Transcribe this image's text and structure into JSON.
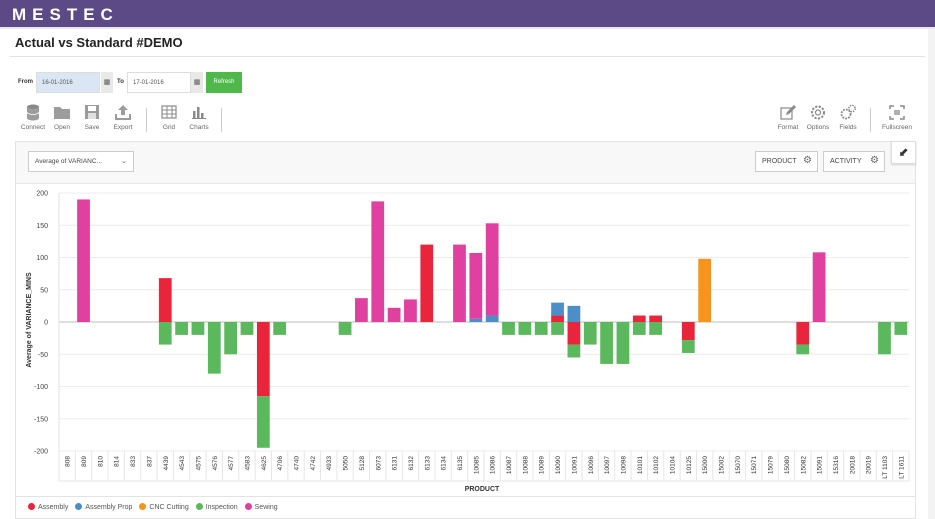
{
  "app": {
    "brand": "MESTEC",
    "title": "Actual vs Standard #DEMO"
  },
  "filters": {
    "from_label": "From",
    "from_value": "16-01-2016",
    "to_label": "To",
    "to_value": "17-01-2016",
    "refresh_label": "Refresh"
  },
  "toolbar": {
    "left": [
      {
        "label": "Connect",
        "icon": "database-icon"
      },
      {
        "label": "Open",
        "icon": "folder-icon"
      },
      {
        "label": "Save",
        "icon": "floppy-icon"
      },
      {
        "label": "Export",
        "icon": "export-icon"
      },
      {
        "label": "Grid",
        "icon": "grid-icon"
      },
      {
        "label": "Charts",
        "icon": "bar-chart-icon"
      }
    ],
    "right": [
      {
        "label": "Format",
        "icon": "pencil-icon"
      },
      {
        "label": "Options",
        "icon": "gear-icon"
      },
      {
        "label": "Fields",
        "icon": "gears-icon"
      },
      {
        "label": "Fullscreen",
        "icon": "fullscreen-icon"
      }
    ]
  },
  "chart_controls": {
    "measure_label": "Average of VARIANC...",
    "product_label": "PRODUCT",
    "activity_label": "ACTIVITY"
  },
  "chart_data": {
    "type": "bar",
    "stacked": true,
    "ylabel": "Average of VARIANCE_MINS",
    "xlabel": "PRODUCT",
    "ylim": [
      -200,
      200
    ],
    "yticks": [
      -200,
      -150,
      -100,
      -50,
      0,
      50,
      100,
      150,
      200
    ],
    "grid": true,
    "legend_position": "bottom-left",
    "categories": [
      "808",
      "809",
      "810",
      "814",
      "833",
      "837",
      "4439",
      "4543",
      "4575",
      "4576",
      "4577",
      "4583",
      "4625",
      "4706",
      "4740",
      "4742",
      "4933",
      "5050",
      "5128",
      "6073",
      "6131",
      "6132",
      "6133",
      "6134",
      "6135",
      "10085",
      "10086",
      "10087",
      "10088",
      "10089",
      "10090",
      "10091",
      "10096",
      "10097",
      "10098",
      "10101",
      "10102",
      "10104",
      "10125",
      "15000",
      "15002",
      "15070",
      "15071",
      "15079",
      "15080",
      "15082",
      "15091",
      "15316",
      "20018",
      "20019",
      "LT 1103",
      "LT 1611"
    ],
    "series": [
      {
        "name": "Assembly",
        "color": "#e8253a",
        "values": [
          0,
          0,
          0,
          0,
          0,
          0,
          68,
          0,
          0,
          0,
          0,
          0,
          -115,
          0,
          0,
          0,
          0,
          0,
          0,
          0,
          0,
          0,
          120,
          0,
          0,
          0,
          0,
          0,
          0,
          0,
          10,
          -35,
          0,
          0,
          0,
          10,
          10,
          0,
          -28,
          0,
          0,
          0,
          0,
          0,
          0,
          -35,
          0,
          0,
          0,
          0,
          0,
          0
        ]
      },
      {
        "name": "Assembly Prop",
        "color": "#4b8ec8",
        "values": [
          0,
          0,
          0,
          0,
          0,
          0,
          0,
          0,
          0,
          0,
          0,
          0,
          0,
          0,
          0,
          0,
          0,
          0,
          0,
          0,
          0,
          0,
          0,
          0,
          0,
          5,
          10,
          0,
          0,
          0,
          20,
          25,
          0,
          0,
          0,
          0,
          0,
          0,
          0,
          0,
          0,
          0,
          0,
          0,
          0,
          0,
          0,
          0,
          0,
          0,
          0,
          0
        ]
      },
      {
        "name": "CNC Cutting",
        "color": "#f7941d",
        "values": [
          0,
          0,
          0,
          0,
          0,
          0,
          0,
          0,
          0,
          0,
          0,
          0,
          0,
          0,
          0,
          0,
          0,
          0,
          0,
          0,
          0,
          0,
          0,
          0,
          0,
          0,
          0,
          0,
          0,
          0,
          0,
          0,
          0,
          0,
          0,
          0,
          0,
          0,
          0,
          98,
          0,
          0,
          0,
          0,
          0,
          0,
          0,
          0,
          0,
          0,
          0,
          0
        ]
      },
      {
        "name": "Inspection",
        "color": "#5cb85c",
        "values": [
          0,
          0,
          0,
          0,
          0,
          0,
          -35,
          -20,
          -20,
          -80,
          -50,
          -20,
          -80,
          -20,
          0,
          0,
          0,
          -20,
          0,
          0,
          0,
          0,
          0,
          0,
          0,
          0,
          0,
          -20,
          -20,
          -20,
          -20,
          -20,
          -35,
          -65,
          -65,
          -20,
          -20,
          0,
          -20,
          0,
          0,
          0,
          0,
          0,
          0,
          -15,
          0,
          0,
          0,
          0,
          -50,
          -20
        ]
      },
      {
        "name": "Sewing",
        "color": "#e040a0",
        "values": [
          0,
          190,
          0,
          0,
          0,
          0,
          0,
          0,
          0,
          0,
          0,
          0,
          0,
          0,
          0,
          0,
          0,
          0,
          37,
          187,
          22,
          35,
          0,
          0,
          120,
          102,
          143,
          0,
          0,
          0,
          0,
          0,
          0,
          0,
          0,
          0,
          0,
          0,
          0,
          0,
          0,
          0,
          0,
          0,
          0,
          0,
          108,
          0,
          0,
          0,
          0,
          0
        ]
      }
    ]
  }
}
